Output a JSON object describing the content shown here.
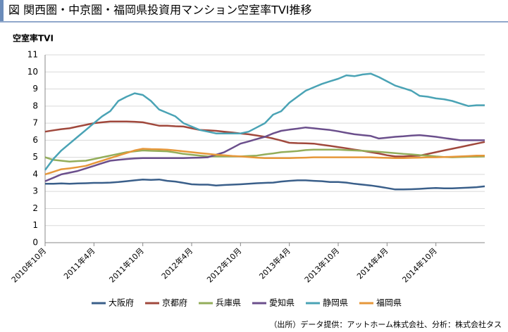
{
  "chart_data": {
    "type": "line",
    "title": "図 関西圏・中京圏・福岡県投資用マンション空室率TVI推移",
    "y_label": "空室率TVI",
    "source": "（出所）データ提供：アットホーム株式会社、分析：株式会社タス",
    "categories": [
      "2010年10月",
      null,
      null,
      null,
      null,
      null,
      "2011年4月",
      null,
      null,
      null,
      null,
      null,
      "2011年10月",
      null,
      null,
      null,
      null,
      null,
      "2012年4月",
      null,
      null,
      null,
      null,
      null,
      "2012年10月",
      null,
      null,
      null,
      null,
      null,
      "2013年4月",
      null,
      null,
      null,
      null,
      null,
      "2013年10月",
      null,
      null,
      null,
      null,
      null,
      "2014年4月",
      null,
      null,
      null,
      null,
      null,
      "2014年10月",
      null,
      null,
      null,
      null,
      null,
      null
    ],
    "ylim": [
      0,
      11
    ],
    "yticks": [
      0,
      1,
      2,
      3,
      4,
      5,
      6,
      7,
      8,
      9,
      10,
      11
    ],
    "grid": true,
    "legend": "bottom",
    "series": [
      {
        "name": "大阪府",
        "color": "#3a5f8a",
        "values": [
          3.45,
          3.45,
          3.47,
          3.45,
          3.47,
          3.48,
          3.5,
          3.5,
          3.52,
          3.55,
          3.6,
          3.65,
          3.7,
          3.68,
          3.7,
          3.62,
          3.58,
          3.5,
          3.42,
          3.4,
          3.4,
          3.35,
          3.38,
          3.4,
          3.42,
          3.45,
          3.48,
          3.5,
          3.52,
          3.58,
          3.62,
          3.65,
          3.65,
          3.62,
          3.6,
          3.55,
          3.55,
          3.52,
          3.45,
          3.4,
          3.35,
          3.28,
          3.2,
          3.12,
          3.12,
          3.13,
          3.15,
          3.18,
          3.2,
          3.18,
          3.18,
          3.2,
          3.22,
          3.25,
          3.3
        ]
      },
      {
        "name": "京都府",
        "color": "#a0483c",
        "values": [
          6.5,
          6.58,
          6.65,
          6.7,
          6.8,
          6.9,
          7.0,
          7.05,
          7.1,
          7.1,
          7.1,
          7.08,
          7.05,
          6.95,
          6.85,
          6.85,
          6.82,
          6.8,
          6.7,
          6.6,
          6.58,
          6.55,
          6.5,
          6.45,
          6.4,
          6.35,
          6.28,
          6.2,
          6.1,
          5.98,
          5.85,
          5.83,
          5.82,
          5.8,
          5.73,
          5.67,
          5.6,
          5.53,
          5.45,
          5.38,
          5.3,
          5.22,
          5.12,
          5.05,
          5.05,
          5.08,
          5.1,
          5.2,
          5.3,
          5.4,
          5.5,
          5.6,
          5.7,
          5.8,
          5.9
        ]
      },
      {
        "name": "兵庫県",
        "color": "#93ad5a",
        "values": [
          5.0,
          4.85,
          4.8,
          4.75,
          4.78,
          4.8,
          4.9,
          5.0,
          5.1,
          5.2,
          5.3,
          5.35,
          5.4,
          5.38,
          5.37,
          5.35,
          5.28,
          5.2,
          5.15,
          5.1,
          5.05,
          5.05,
          5.05,
          5.05,
          5.05,
          5.08,
          5.1,
          5.17,
          5.23,
          5.3,
          5.33,
          5.37,
          5.42,
          5.45,
          5.45,
          5.45,
          5.45,
          5.42,
          5.4,
          5.38,
          5.35,
          5.32,
          5.28,
          5.24,
          5.2,
          5.17,
          5.13,
          5.1,
          5.05,
          5.02,
          5.0,
          5.02,
          5.03,
          5.04,
          5.05
        ]
      },
      {
        "name": "愛知県",
        "color": "#6b4f8c",
        "values": [
          3.6,
          3.8,
          4.0,
          4.1,
          4.2,
          4.35,
          4.5,
          4.65,
          4.8,
          4.85,
          4.9,
          4.93,
          4.95,
          4.95,
          4.95,
          4.95,
          4.95,
          4.95,
          4.97,
          4.98,
          5.0,
          5.15,
          5.3,
          5.55,
          5.8,
          5.93,
          6.07,
          6.2,
          6.4,
          6.55,
          6.62,
          6.68,
          6.75,
          6.7,
          6.65,
          6.6,
          6.52,
          6.43,
          6.35,
          6.3,
          6.25,
          6.1,
          6.15,
          6.2,
          6.23,
          6.27,
          6.3,
          6.25,
          6.2,
          6.13,
          6.07,
          6.0,
          6.0,
          6.0,
          6.0
        ]
      },
      {
        "name": "静岡県",
        "color": "#4aa3b5",
        "values": [
          4.25,
          4.9,
          5.4,
          5.8,
          6.2,
          6.6,
          7.0,
          7.4,
          7.7,
          8.3,
          8.55,
          8.75,
          8.65,
          8.3,
          7.8,
          7.6,
          7.4,
          7.0,
          6.8,
          6.6,
          6.5,
          6.4,
          6.4,
          6.4,
          6.4,
          6.5,
          6.75,
          7.0,
          7.5,
          7.7,
          8.2,
          8.55,
          8.9,
          9.1,
          9.3,
          9.45,
          9.6,
          9.8,
          9.75,
          9.85,
          9.9,
          9.7,
          9.45,
          9.2,
          9.05,
          8.9,
          8.6,
          8.55,
          8.45,
          8.4,
          8.3,
          8.15,
          8.0,
          8.05,
          8.05
        ]
      },
      {
        "name": "福岡県",
        "color": "#e6973a",
        "values": [
          4.0,
          4.15,
          4.3,
          4.35,
          4.42,
          4.5,
          4.65,
          4.8,
          4.95,
          5.1,
          5.25,
          5.4,
          5.5,
          5.48,
          5.47,
          5.45,
          5.4,
          5.35,
          5.3,
          5.25,
          5.2,
          5.15,
          5.12,
          5.08,
          5.05,
          5.02,
          4.98,
          4.95,
          4.95,
          4.95,
          4.95,
          4.97,
          4.98,
          5.0,
          5.0,
          5.0,
          5.0,
          5.0,
          5.0,
          5.0,
          5.0,
          4.98,
          4.97,
          4.95,
          4.95,
          4.97,
          4.98,
          5.0,
          5.0,
          5.02,
          5.03,
          5.05,
          5.07,
          5.1,
          5.1
        ]
      }
    ]
  }
}
